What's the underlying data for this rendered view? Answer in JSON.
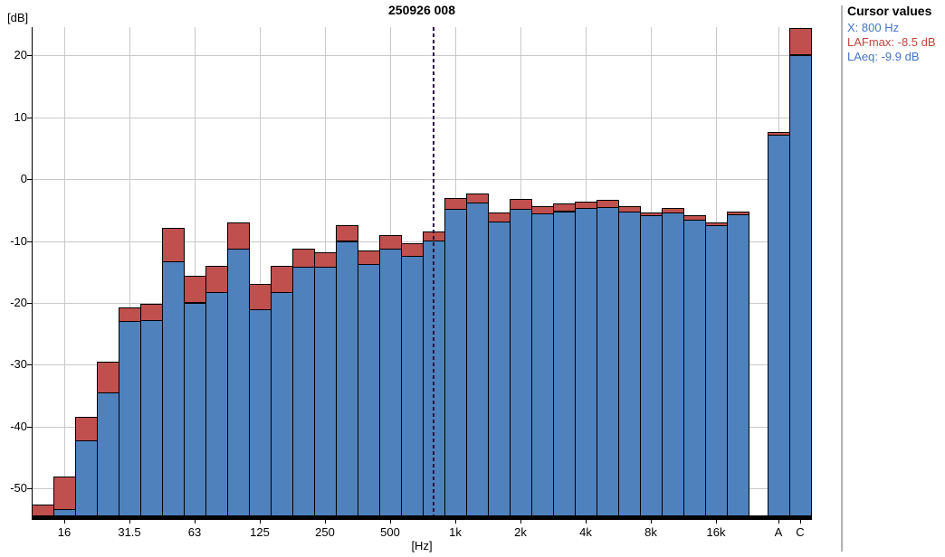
{
  "title": "250926 008",
  "y_axis": {
    "label": "[dB]",
    "ticks": [
      20,
      10,
      0,
      -10,
      -20,
      -30,
      -40,
      -50
    ]
  },
  "x_axis": {
    "label": "[Hz]",
    "tick_labels": [
      "16",
      "31.5",
      "63",
      "125",
      "250",
      "500",
      "1k",
      "2k",
      "4k",
      "8k",
      "16k",
      "A",
      "C"
    ]
  },
  "cursor_panel": {
    "title": "Cursor values",
    "x_label": "X: 800 Hz",
    "lafmax_label": "LAFmax: -8.5 dB",
    "laeq_label": "LAeq: -9.9 dB",
    "text_blue": "#4575c4",
    "text_red": "#c2473d"
  },
  "chart_data": {
    "type": "bar",
    "title": "250926 008",
    "xlabel": "[Hz]",
    "ylabel": "[dB]",
    "ylim": [
      -54.4,
      24.6
    ],
    "grid": true,
    "grid_color": "#c9c9c9",
    "cursor_color": "#2b0b42",
    "cursor": {
      "x": "800 Hz",
      "LAFmax_dB": -8.5,
      "LAeq_dB": -9.9
    },
    "categories": [
      "12.5",
      "16",
      "20",
      "25",
      "31.5",
      "40",
      "50",
      "63",
      "80",
      "100",
      "125",
      "160",
      "200",
      "250",
      "315",
      "400",
      "500",
      "630",
      "800",
      "1k",
      "1.25k",
      "1.6k",
      "2k",
      "2.5k",
      "3.15k",
      "4k",
      "5k",
      "6.3k",
      "8k",
      "10k",
      "12.5k",
      "16k",
      "20k",
      "A",
      "C"
    ],
    "series": [
      {
        "name": "LAFmax",
        "color": "#c0504d",
        "values": [
          -52.7,
          -48.1,
          -38.5,
          -29.5,
          -20.7,
          -20.1,
          -7.9,
          -15.7,
          -14.0,
          -7.0,
          -16.9,
          -14.0,
          -11.2,
          -11.8,
          -7.5,
          -11.5,
          -9.0,
          -10.4,
          -8.5,
          -3.1,
          -2.3,
          -5.4,
          -3.2,
          -4.4,
          -4.0,
          -3.6,
          -3.4,
          -4.4,
          -5.4,
          -4.7,
          -5.9,
          -7.0,
          -5.3,
          7.6,
          24.4
        ]
      },
      {
        "name": "LAeq",
        "color": "#4f81bd",
        "values": [
          -56.0,
          -53.4,
          -42.3,
          -34.5,
          -23.0,
          -22.8,
          -13.3,
          -20.0,
          -18.3,
          -11.2,
          -21.0,
          -18.3,
          -14.2,
          -14.2,
          -10.0,
          -13.8,
          -11.2,
          -12.4,
          -9.9,
          -4.8,
          -3.8,
          -6.8,
          -4.8,
          -5.6,
          -5.2,
          -4.7,
          -4.5,
          -5.3,
          -5.9,
          -5.4,
          -6.6,
          -7.5,
          -5.7,
          7.2,
          20.1
        ]
      }
    ]
  }
}
